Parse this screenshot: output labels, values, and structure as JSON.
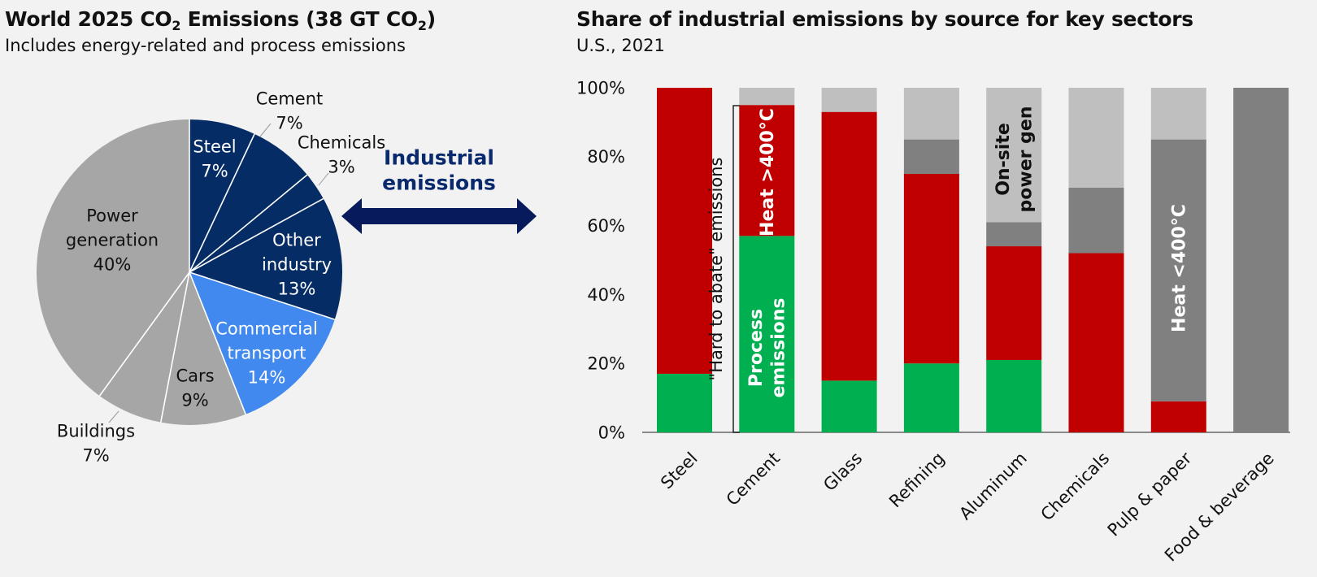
{
  "left_title": {
    "main": "World 2025 CO",
    "sub": "2",
    "mid": " Emissions (38 GT CO",
    "sub2": "2",
    "end": ")"
  },
  "left_subtitle": "Includes energy-related and process emissions",
  "right_title": "Share of industrial emissions by source for key sectors",
  "right_subtitle": "U.S., 2021",
  "arrow_label": [
    "Industrial",
    "emissions"
  ],
  "colors": {
    "dark_navy": "#062c65",
    "bright_blue": "#4189ee",
    "pie_gray": "#a6a6a6",
    "green": "#00b050",
    "red": "#c00000",
    "dark_gray": "#808080",
    "light_gray": "#bfbfbf",
    "arrow": "#061a5c"
  },
  "chart_data": [
    {
      "type": "pie",
      "title": "World 2025 CO2 Emissions (38 GT CO2)",
      "slices": [
        {
          "label": "Steel",
          "value": 7,
          "pct_text": "7%",
          "color": "#062c65"
        },
        {
          "label": "Cement",
          "value": 7,
          "pct_text": "7%",
          "color": "#062c65"
        },
        {
          "label": "Chemicals",
          "value": 3,
          "pct_text": "3%",
          "color": "#062c65"
        },
        {
          "label": "Other industry",
          "value": 13,
          "pct_text": "13%",
          "color": "#062c65"
        },
        {
          "label": "Commercial transport",
          "value": 14,
          "pct_text": "14%",
          "color": "#4189ee"
        },
        {
          "label": "Cars",
          "value": 9,
          "pct_text": "9%",
          "color": "#a6a6a6"
        },
        {
          "label": "Buildings",
          "value": 7,
          "pct_text": "7%",
          "color": "#a6a6a6"
        },
        {
          "label": "Power generation",
          "value": 40,
          "pct_text": "40%",
          "color": "#a6a6a6"
        }
      ]
    },
    {
      "type": "bar",
      "stacked": true,
      "title": "Share of industrial emissions by source for key sectors",
      "ylim": [
        0,
        100
      ],
      "yticks": [
        "0%",
        "20%",
        "40%",
        "60%",
        "80%",
        "100%"
      ],
      "categories": [
        "Steel",
        "Cement",
        "Glass",
        "Refining",
        "Aluminum",
        "Chemicals",
        "Pulp & paper",
        "Food & beverage"
      ],
      "series": [
        {
          "name": "Process emissions",
          "color": "#00b050",
          "values": [
            17,
            57,
            15,
            20,
            21,
            0,
            0,
            0
          ]
        },
        {
          "name": "Heat >400°C",
          "color": "#c00000",
          "values": [
            83,
            38,
            78,
            55,
            33,
            52,
            9,
            0
          ]
        },
        {
          "name": "Heat <400°C",
          "color": "#808080",
          "values": [
            0,
            0,
            0,
            10,
            7,
            19,
            76,
            100
          ]
        },
        {
          "name": "On-site power gen",
          "color": "#bfbfbf",
          "values": [
            0,
            5,
            7,
            15,
            39,
            29,
            15,
            0
          ]
        }
      ],
      "annotations": [
        "Process emissions",
        "Heat >400°C",
        "On-site power gen",
        "Heat <400°C",
        "\"Hard to abate\" emissions"
      ]
    }
  ]
}
